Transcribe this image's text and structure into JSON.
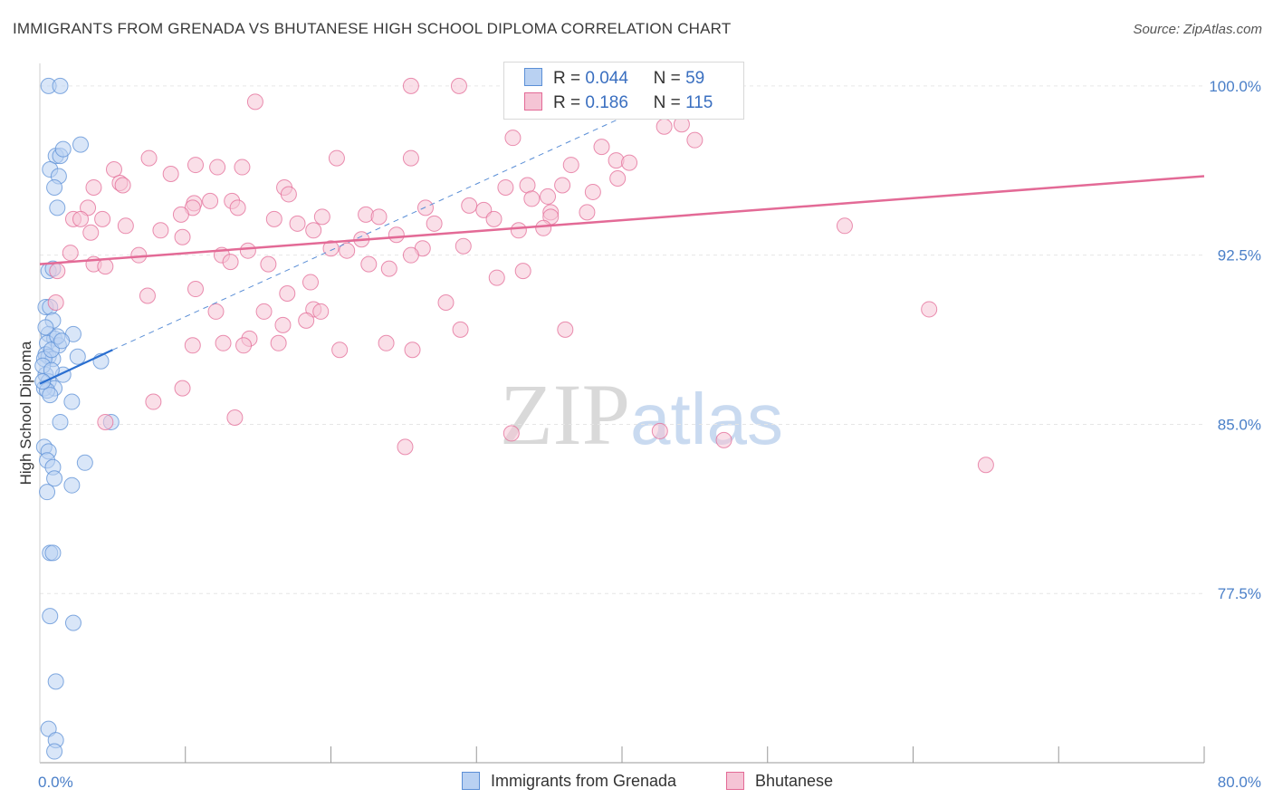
{
  "chart_data": {
    "type": "scatter",
    "title": "IMMIGRANTS FROM GRENADA VS BHUTANESE HIGH SCHOOL DIPLOMA CORRELATION CHART",
    "source": "Source: ZipAtlas.com",
    "xlabel": "",
    "ylabel": "High School Diploma",
    "xlim": [
      0,
      80
    ],
    "ylim": [
      70,
      101
    ],
    "x_tick_labels": [
      "0.0%",
      "80.0%"
    ],
    "y_ticks": [
      77.5,
      85.0,
      92.5,
      100.0
    ],
    "y_tick_labels": [
      "77.5%",
      "85.0%",
      "92.5%",
      "100.0%"
    ],
    "grid": true,
    "watermark": {
      "part1": "ZIP",
      "part2": "atlas"
    },
    "legend": {
      "position": "top-center",
      "rows": [
        {
          "r_label": "R =",
          "r_value": "0.044",
          "n_label": "N =",
          "n_value": "59"
        },
        {
          "r_label": "R =",
          "r_value": "0.186",
          "n_label": "N =",
          "n_value": "115"
        }
      ]
    },
    "series": [
      {
        "name": "Immigrants from Grenada",
        "color": "#5b8fd6",
        "fill": "#b9d1f2",
        "trend": {
          "x": [
            0,
            5
          ],
          "y": [
            86.8,
            88.3
          ]
        },
        "trend_extension": {
          "x": [
            5,
            40
          ],
          "y": [
            88.3,
            98.6
          ]
        },
        "points": [
          [
            0.6,
            100
          ],
          [
            1.4,
            100
          ],
          [
            2.8,
            97.4
          ],
          [
            1.1,
            96.9
          ],
          [
            1.4,
            96.9
          ],
          [
            1.6,
            97.2
          ],
          [
            0.7,
            96.3
          ],
          [
            1.3,
            96.0
          ],
          [
            1.0,
            95.5
          ],
          [
            1.2,
            94.6
          ],
          [
            0.6,
            91.8
          ],
          [
            0.9,
            91.9
          ],
          [
            0.4,
            90.2
          ],
          [
            0.7,
            90.2
          ],
          [
            0.9,
            89.6
          ],
          [
            0.6,
            89.0
          ],
          [
            1.0,
            88.8
          ],
          [
            0.5,
            88.6
          ],
          [
            1.3,
            88.5
          ],
          [
            2.3,
            89.0
          ],
          [
            0.4,
            88.1
          ],
          [
            0.6,
            88.0
          ],
          [
            0.9,
            87.9
          ],
          [
            0.3,
            87.9
          ],
          [
            2.6,
            88.0
          ],
          [
            4.2,
            87.8
          ],
          [
            0.4,
            87.2
          ],
          [
            1.6,
            87.2
          ],
          [
            0.6,
            86.9
          ],
          [
            1.0,
            86.6
          ],
          [
            0.3,
            86.6
          ],
          [
            0.5,
            86.5
          ],
          [
            0.7,
            86.3
          ],
          [
            2.2,
            86.0
          ],
          [
            1.4,
            85.1
          ],
          [
            4.9,
            85.1
          ],
          [
            0.3,
            84.0
          ],
          [
            0.6,
            83.8
          ],
          [
            0.5,
            83.4
          ],
          [
            0.9,
            83.1
          ],
          [
            3.1,
            83.3
          ],
          [
            1.0,
            82.6
          ],
          [
            2.2,
            82.3
          ],
          [
            0.5,
            82.0
          ],
          [
            0.7,
            79.3
          ],
          [
            0.9,
            79.3
          ],
          [
            0.7,
            76.5
          ],
          [
            2.3,
            76.2
          ],
          [
            1.1,
            73.6
          ],
          [
            0.6,
            71.5
          ],
          [
            1.1,
            71.0
          ],
          [
            1.0,
            70.5
          ],
          [
            0.2,
            87.6
          ],
          [
            0.8,
            87.4
          ],
          [
            1.2,
            88.9
          ],
          [
            0.4,
            89.3
          ],
          [
            0.8,
            88.3
          ],
          [
            1.5,
            88.7
          ],
          [
            0.2,
            86.9
          ]
        ]
      },
      {
        "name": "Bhutanese",
        "color": "#e36a96",
        "fill": "#f5c4d5",
        "trend": {
          "x": [
            0,
            80
          ],
          "y": [
            92.1,
            96.0
          ]
        },
        "points": [
          [
            25.5,
            100
          ],
          [
            28.8,
            100
          ],
          [
            42.8,
            100
          ],
          [
            14.8,
            99.3
          ],
          [
            44.1,
            98.3
          ],
          [
            42.9,
            98.2
          ],
          [
            32.5,
            97.7
          ],
          [
            45.0,
            97.6
          ],
          [
            38.6,
            97.3
          ],
          [
            39.6,
            96.7
          ],
          [
            7.5,
            96.8
          ],
          [
            10.7,
            96.5
          ],
          [
            12.2,
            96.4
          ],
          [
            13.9,
            96.4
          ],
          [
            20.4,
            96.8
          ],
          [
            25.5,
            96.8
          ],
          [
            36.5,
            96.5
          ],
          [
            40.5,
            96.6
          ],
          [
            5.1,
            96.3
          ],
          [
            9.0,
            96.1
          ],
          [
            39.7,
            95.9
          ],
          [
            5.5,
            95.7
          ],
          [
            5.7,
            95.6
          ],
          [
            3.7,
            95.5
          ],
          [
            16.8,
            95.5
          ],
          [
            33.5,
            95.6
          ],
          [
            35.9,
            95.6
          ],
          [
            17.1,
            95.2
          ],
          [
            32.0,
            95.5
          ],
          [
            34.9,
            95.1
          ],
          [
            38.0,
            95.3
          ],
          [
            33.8,
            95.0
          ],
          [
            10.6,
            94.8
          ],
          [
            11.7,
            94.9
          ],
          [
            13.2,
            94.9
          ],
          [
            29.5,
            94.7
          ],
          [
            3.3,
            94.6
          ],
          [
            13.6,
            94.6
          ],
          [
            10.5,
            94.6
          ],
          [
            26.5,
            94.6
          ],
          [
            30.5,
            94.5
          ],
          [
            37.6,
            94.4
          ],
          [
            35.1,
            94.4
          ],
          [
            9.7,
            94.3
          ],
          [
            16.1,
            94.1
          ],
          [
            19.4,
            94.2
          ],
          [
            22.4,
            94.3
          ],
          [
            23.3,
            94.2
          ],
          [
            31.2,
            94.1
          ],
          [
            2.3,
            94.1
          ],
          [
            2.8,
            94.1
          ],
          [
            4.3,
            94.1
          ],
          [
            5.9,
            93.8
          ],
          [
            17.7,
            93.9
          ],
          [
            27.1,
            93.9
          ],
          [
            35.1,
            94.2
          ],
          [
            32.9,
            93.6
          ],
          [
            8.3,
            93.6
          ],
          [
            18.8,
            93.6
          ],
          [
            3.5,
            93.5
          ],
          [
            9.8,
            93.3
          ],
          [
            24.5,
            93.4
          ],
          [
            22.1,
            93.2
          ],
          [
            29.1,
            92.9
          ],
          [
            21.1,
            92.7
          ],
          [
            26.3,
            92.8
          ],
          [
            34.6,
            93.7
          ],
          [
            55.3,
            93.8
          ],
          [
            2.1,
            92.6
          ],
          [
            6.8,
            92.5
          ],
          [
            12.5,
            92.5
          ],
          [
            14.3,
            92.7
          ],
          [
            20.0,
            92.8
          ],
          [
            25.5,
            92.5
          ],
          [
            3.7,
            92.1
          ],
          [
            4.5,
            92.0
          ],
          [
            13.1,
            92.2
          ],
          [
            15.7,
            92.1
          ],
          [
            22.6,
            92.1
          ],
          [
            1.2,
            91.8
          ],
          [
            24.0,
            91.9
          ],
          [
            33.2,
            91.8
          ],
          [
            18.6,
            91.3
          ],
          [
            31.4,
            91.5
          ],
          [
            17.0,
            90.8
          ],
          [
            10.7,
            91.0
          ],
          [
            7.4,
            90.7
          ],
          [
            27.9,
            90.4
          ],
          [
            18.8,
            90.1
          ],
          [
            12.1,
            90.0
          ],
          [
            15.4,
            90.0
          ],
          [
            19.3,
            90.0
          ],
          [
            61.1,
            90.1
          ],
          [
            1.1,
            90.4
          ],
          [
            16.7,
            89.4
          ],
          [
            18.3,
            89.6
          ],
          [
            14.4,
            88.8
          ],
          [
            16.4,
            88.6
          ],
          [
            23.8,
            88.6
          ],
          [
            28.9,
            89.2
          ],
          [
            25.6,
            88.3
          ],
          [
            14.0,
            88.5
          ],
          [
            12.6,
            88.6
          ],
          [
            10.5,
            88.5
          ],
          [
            36.1,
            89.2
          ],
          [
            20.6,
            88.3
          ],
          [
            13.4,
            85.3
          ],
          [
            25.1,
            84.0
          ],
          [
            32.4,
            84.6
          ],
          [
            42.6,
            84.7
          ],
          [
            47.0,
            84.3
          ],
          [
            65.0,
            83.2
          ],
          [
            9.8,
            86.6
          ],
          [
            7.8,
            86.0
          ],
          [
            4.5,
            85.1
          ]
        ]
      }
    ]
  },
  "bottom_legend": {
    "items": [
      {
        "label": "Immigrants from Grenada"
      },
      {
        "label": "Bhutanese"
      }
    ]
  }
}
